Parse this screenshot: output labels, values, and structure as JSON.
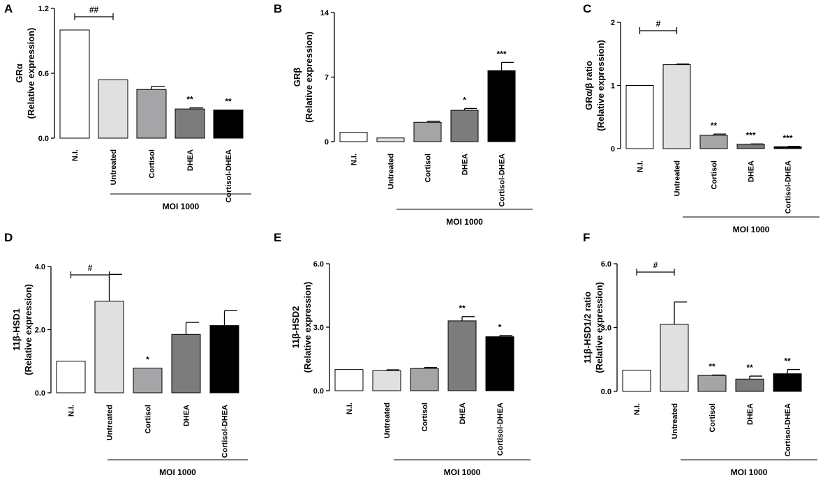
{
  "figure": {
    "moi_label": "MOI 1000"
  },
  "colors": {
    "N.I.": "#ffffff",
    "Untreated": "#e0e0e0",
    "Cortisol": "#a5a5a8",
    "DHEA": "#7c7c7c",
    "Cortisol-DHEA": "#000000"
  },
  "chart_data": [
    {
      "panel": "A",
      "type": "bar",
      "categories": [
        "N.I.",
        "Untreated",
        "Cortisol",
        "DHEA",
        "Cortisol-DHEA"
      ],
      "values": [
        1.0,
        0.54,
        0.45,
        0.27,
        0.26
      ],
      "errors": [
        0,
        0,
        0.03,
        0.01,
        0
      ],
      "significance": [
        "",
        "",
        "",
        "**",
        "**"
      ],
      "bracket": {
        "from": 0,
        "to": 1,
        "label": "##"
      },
      "ylabel_line1": "GRα",
      "ylabel_line2": "(Relative expression)",
      "ylim": [
        0,
        1.2
      ],
      "yticks": [
        0,
        0.6,
        1.2
      ],
      "ytick_labels": [
        "0.0",
        "0.6",
        "1.2"
      ],
      "xlabel": "MOI 1000"
    },
    {
      "panel": "B",
      "type": "bar",
      "categories": [
        "N.I.",
        "Untreated",
        "Cortisol",
        "DHEA",
        "Cortisol-DHEA"
      ],
      "values": [
        1.0,
        0.4,
        2.1,
        3.4,
        7.7
      ],
      "errors": [
        0,
        0,
        0.12,
        0.2,
        0.9
      ],
      "significance": [
        "",
        "",
        "",
        "*",
        "***"
      ],
      "bracket": null,
      "ylabel_line1": "GRβ",
      "ylabel_line2": "(Relative expression)",
      "ylim": [
        0,
        14
      ],
      "yticks": [
        0,
        7,
        14
      ],
      "ytick_labels": [
        "0",
        "7",
        "14"
      ],
      "xlabel": "MOI 1000"
    },
    {
      "panel": "C",
      "type": "bar",
      "categories": [
        "N.I.",
        "Untreated",
        "Cortisol",
        "DHEA",
        "Cortisol-DHEA"
      ],
      "values": [
        1.0,
        1.33,
        0.21,
        0.07,
        0.03
      ],
      "errors": [
        0,
        0.01,
        0.02,
        0.005,
        0.005
      ],
      "significance": [
        "",
        "",
        "**",
        "***",
        "***"
      ],
      "bracket": {
        "from": 0,
        "to": 1,
        "label": "#"
      },
      "ylabel_line1": "GRα/β ratio",
      "ylabel_line2": "(Relative expression)",
      "ylim": [
        0,
        2
      ],
      "yticks": [
        0,
        1,
        2
      ],
      "ytick_labels": [
        "0",
        "1",
        "2"
      ],
      "xlabel": "MOI 1000"
    },
    {
      "panel": "D",
      "type": "bar",
      "categories": [
        "N.I.",
        "Untreated",
        "Cortisol",
        "DHEA",
        "Cortisol-DHEA"
      ],
      "values": [
        1.0,
        2.9,
        0.78,
        1.85,
        2.13
      ],
      "errors": [
        0,
        0.85,
        0,
        0.38,
        0.47
      ],
      "significance": [
        "",
        "",
        "*",
        "",
        ""
      ],
      "bracket": {
        "from": 0,
        "to": 1,
        "label": "#"
      },
      "ylabel_line1": "11β-HSD1",
      "ylabel_line2": "(Relative expression)",
      "ylim": [
        0,
        4
      ],
      "yticks": [
        0,
        2,
        4
      ],
      "ytick_labels": [
        "0.0",
        "2.0",
        "4.0"
      ],
      "xlabel": "MOI 1000"
    },
    {
      "panel": "E",
      "type": "bar",
      "categories": [
        "N.I.",
        "Untreated",
        "Cortisol",
        "DHEA",
        "Cortisol-DHEA"
      ],
      "values": [
        1.0,
        0.95,
        1.05,
        3.3,
        2.55
      ],
      "errors": [
        0,
        0.04,
        0.05,
        0.2,
        0.06
      ],
      "significance": [
        "",
        "",
        "",
        "**",
        "*"
      ],
      "bracket": null,
      "ylabel_line1": "11β-HSD2",
      "ylabel_line2": "(Relative expression)",
      "ylim": [
        0,
        6
      ],
      "yticks": [
        0,
        3,
        6
      ],
      "ytick_labels": [
        "0.0",
        "3.0",
        "6.0"
      ],
      "xlabel": "MOI 1000"
    },
    {
      "panel": "F",
      "type": "bar",
      "categories": [
        "N.I.",
        "Untreated",
        "Cortisol",
        "DHEA",
        "Cortisol-DHEA"
      ],
      "values": [
        1.0,
        3.15,
        0.75,
        0.58,
        0.83
      ],
      "errors": [
        0,
        1.05,
        0.02,
        0.14,
        0.2
      ],
      "significance": [
        "",
        "",
        "**",
        "**",
        "**"
      ],
      "bracket": {
        "from": 0,
        "to": 1,
        "label": "#"
      },
      "ylabel_line1": "11β-HSD1/2 ratio",
      "ylabel_line2": "(Relative expression)",
      "ylim": [
        0,
        6
      ],
      "yticks": [
        0,
        3,
        6
      ],
      "ytick_labels": [
        "0.0",
        "3.0",
        "6.0"
      ],
      "xlabel": "MOI 1000"
    }
  ]
}
